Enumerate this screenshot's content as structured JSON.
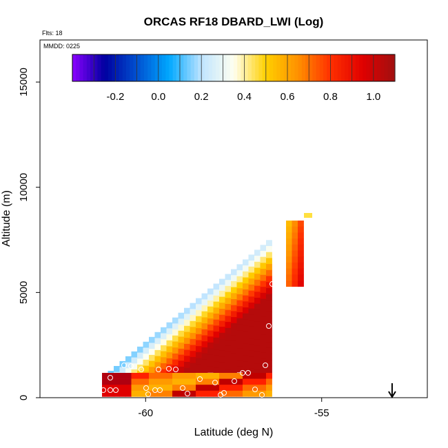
{
  "chart_data": {
    "type": "heatmap",
    "title": "ORCAS RF18 DBARD_LWI (Log)",
    "flights_label": "Flts: 18",
    "date_label": "MMDD: 0225",
    "xlabel": "Latitude (deg N)",
    "ylabel": "Altitude (m)",
    "xlim": [
      -63,
      -52
    ],
    "ylim": [
      0,
      17000
    ],
    "x_ticks": [
      {
        "value": -60,
        "label": "-60"
      },
      {
        "value": -55,
        "label": "-55"
      }
    ],
    "y_ticks": [
      {
        "value": 0,
        "label": "0"
      },
      {
        "value": 5000,
        "label": "5000"
      },
      {
        "value": 10000,
        "label": "10000"
      },
      {
        "value": 15000,
        "label": "15000"
      }
    ],
    "colorbar": {
      "min": -0.4,
      "max": 1.1,
      "ticks": [
        {
          "value": -0.2,
          "label": "-0.2"
        },
        {
          "value": 0.0,
          "label": "0.0"
        },
        {
          "value": 0.2,
          "label": "0.2"
        },
        {
          "value": 0.4,
          "label": "0.4"
        },
        {
          "value": 0.6,
          "label": "0.6"
        },
        {
          "value": 0.8,
          "label": "0.8"
        },
        {
          "value": 1.0,
          "label": "1.0"
        }
      ],
      "colors": [
        "#8b00ff",
        "#0000a0",
        "#0050d0",
        "#00a8ff",
        "#bfe4ff",
        "#fffff0",
        "#ffd000",
        "#ff9000",
        "#ff3000",
        "#e00000",
        "#a01010"
      ]
    },
    "arrow_marker": {
      "latitude": -53.0
    }
  }
}
